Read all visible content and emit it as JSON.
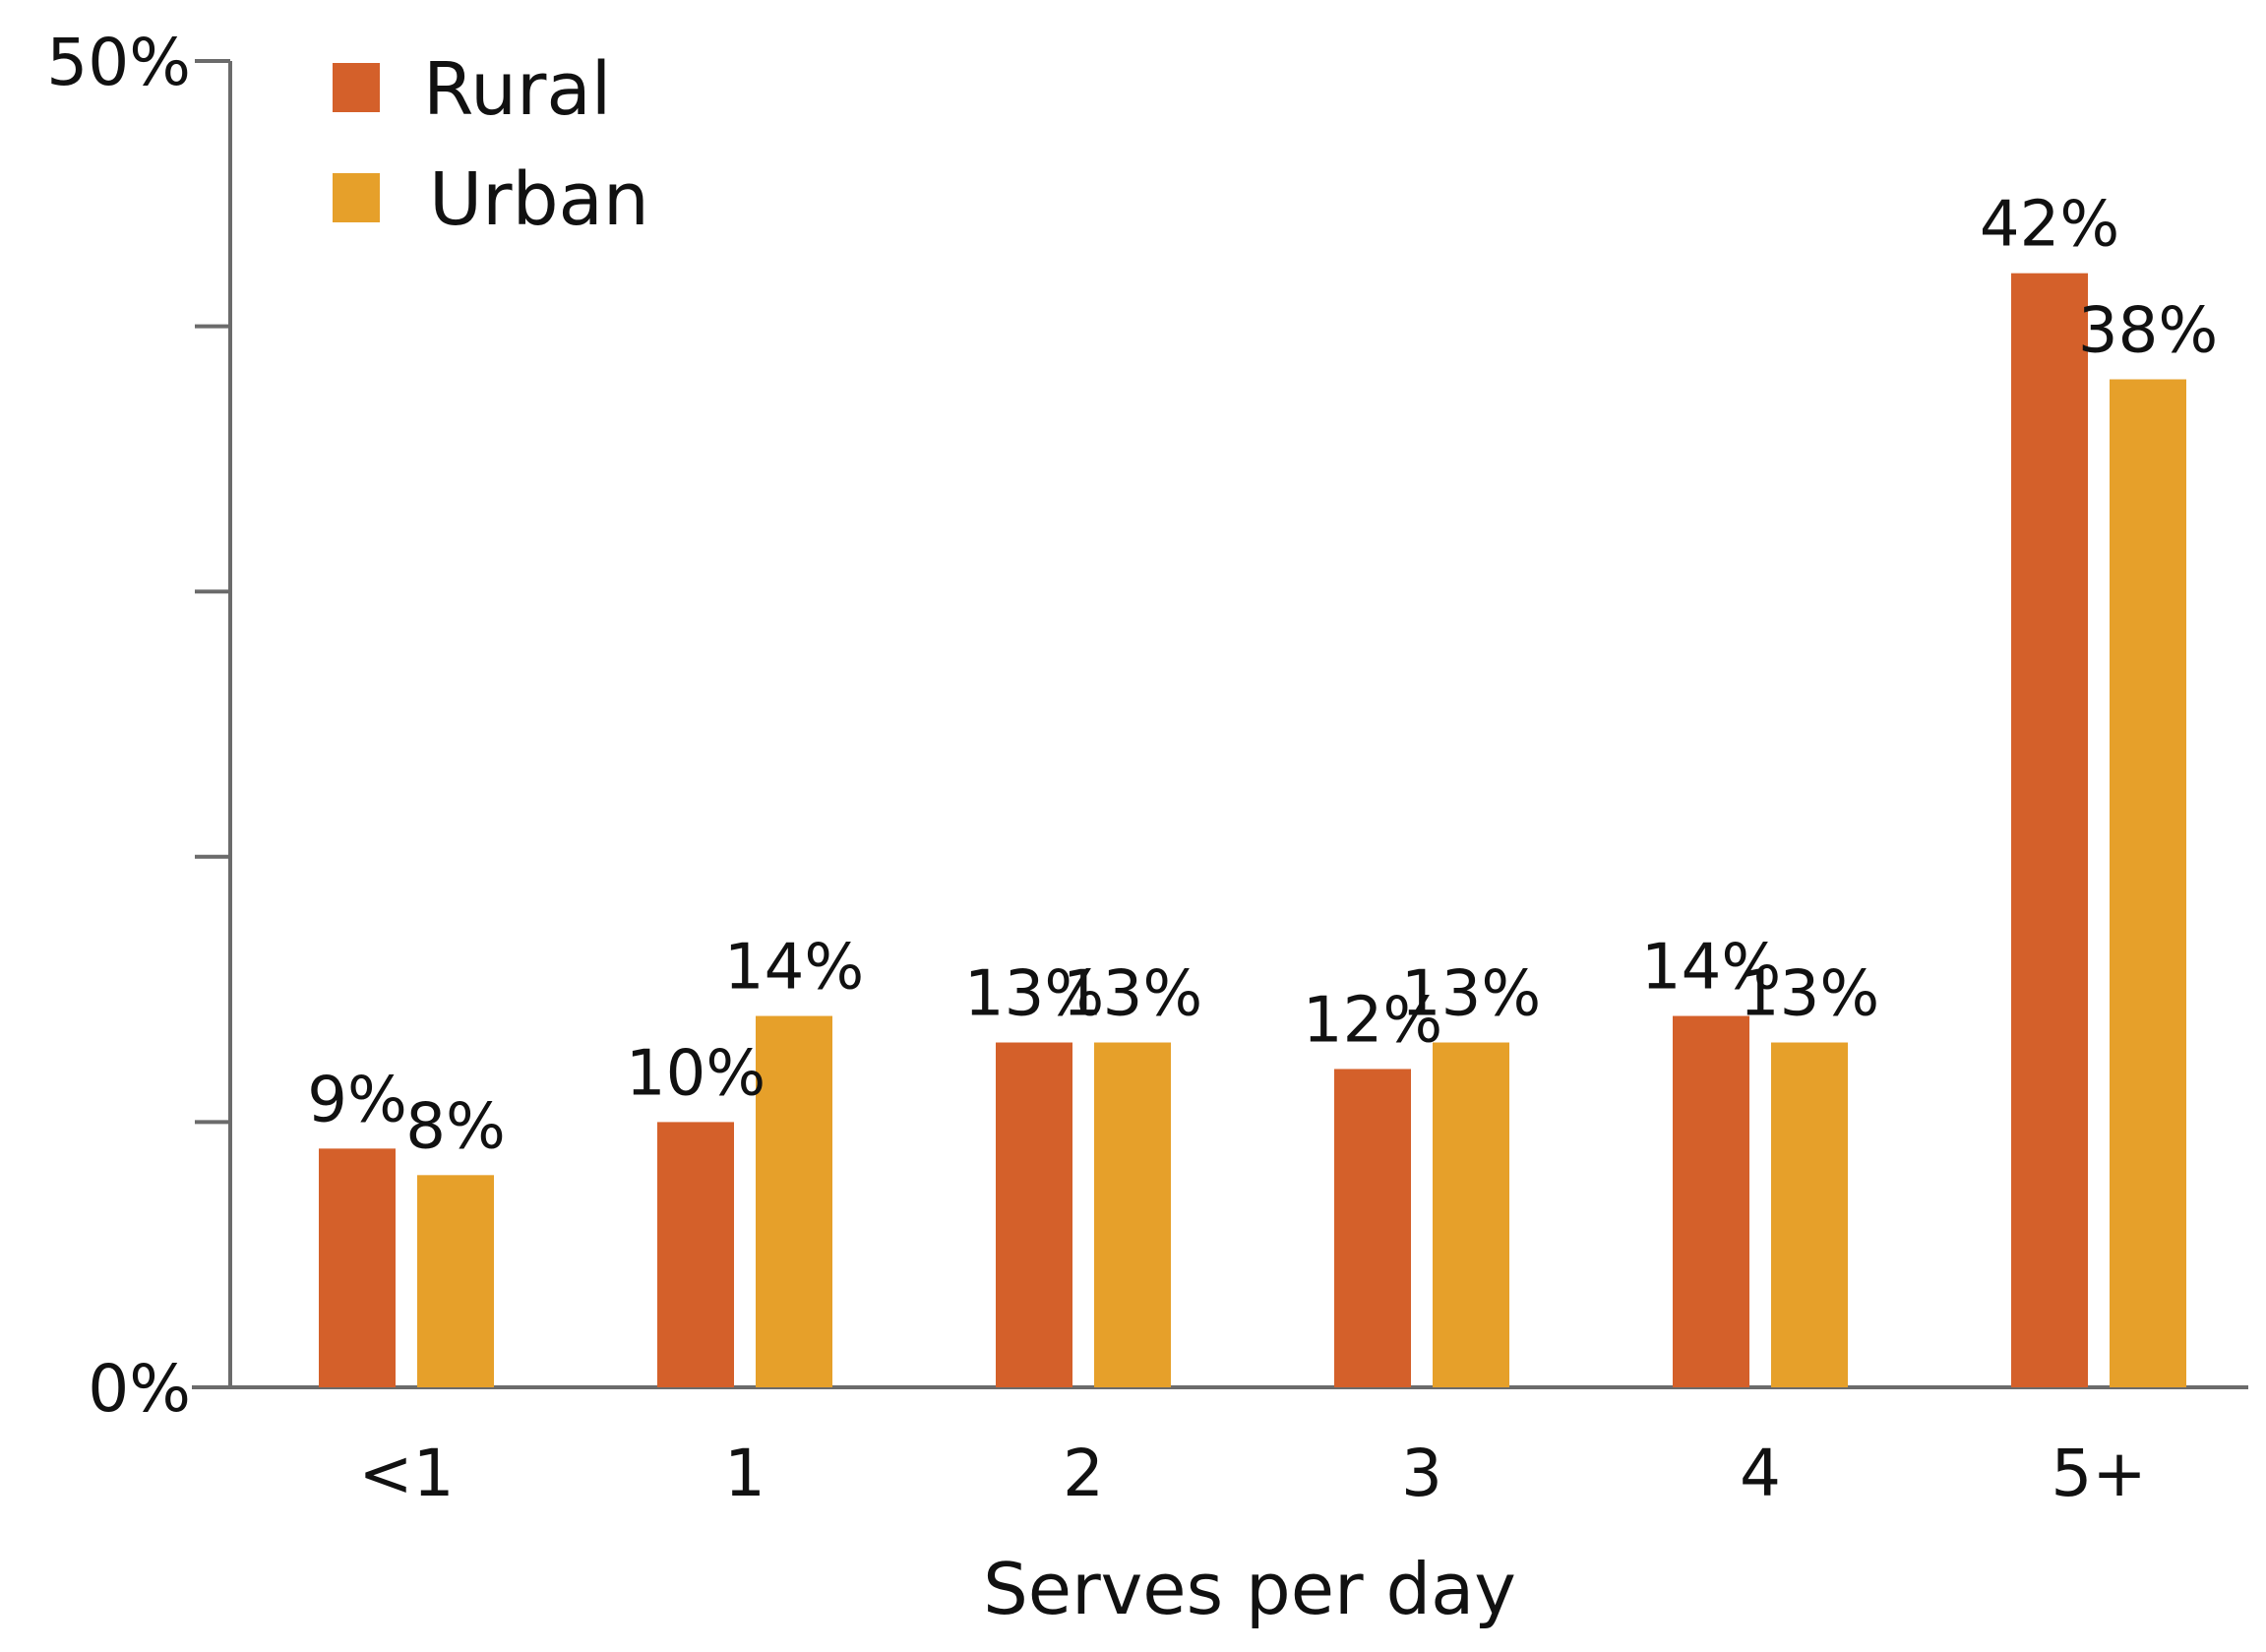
{
  "chart_data": {
    "type": "bar",
    "title": "",
    "xlabel": "Serves per day",
    "ylabel": "",
    "categories": [
      "<1",
      "1",
      "2",
      "3",
      "4",
      "5+"
    ],
    "series": [
      {
        "name": "Rural",
        "color": "#D4602A",
        "values": [
          9,
          10,
          13,
          12,
          14,
          42
        ],
        "labels": [
          "9%",
          "10%",
          "13%",
          "12%",
          "14%",
          "42%"
        ]
      },
      {
        "name": "Urban",
        "color": "#E6A02A",
        "values": [
          8,
          14,
          13,
          13,
          13,
          38
        ],
        "labels": [
          "8%",
          "14%",
          "13%",
          "13%",
          "13%",
          "38%"
        ]
      }
    ],
    "ylim": [
      0,
      50
    ],
    "yticks": [
      0,
      10,
      20,
      30,
      40,
      50
    ],
    "ytick_labels": [
      "0%",
      "",
      "",
      "",
      "",
      "50%"
    ],
    "grid": false,
    "legend_position": "top-left"
  }
}
